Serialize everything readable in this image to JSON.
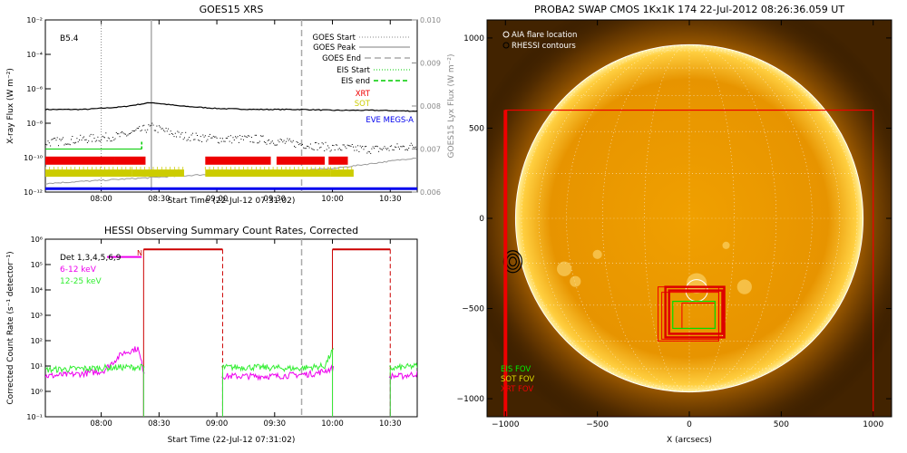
{
  "colors": {
    "goes_line": "#000000",
    "goes_peak": "#aaaaaa",
    "goes_end": "#aaaaaa",
    "eis": "#00cc00",
    "xrt": "#ee0000",
    "sot": "#cccc00",
    "eve": "#0000ee",
    "hessi_6_12": "#ee00ee",
    "hessi_12_25": "#33ee33",
    "hessi_flag": "#cc0000",
    "sun_glow": "#ffb000",
    "sun_core": "#f0a000"
  },
  "chart_data": [
    {
      "type": "line",
      "title": "GOES15 XRS",
      "xlabel": "Start Time (22-Jul-12 07:31:02)",
      "ylabel": "X-ray Flux (W m⁻²)",
      "ylabel_right": "GOES15 Lyx Flux (W m⁻²)",
      "class_label": "B5.4",
      "x_ticks": [
        "08:00",
        "08:30",
        "09:00",
        "09:30",
        "10:00",
        "10:30"
      ],
      "x_tick_minutes": [
        29,
        59,
        89,
        119,
        149,
        179
      ],
      "xlim_minutes": [
        0,
        193
      ],
      "y_log": true,
      "ylim_exp": [
        -12,
        -2
      ],
      "y_ticks": [
        "10⁻¹²",
        "10⁻¹⁰",
        "10⁻⁸",
        "10⁻⁶",
        "10⁻⁴",
        "10⁻²"
      ],
      "y_tick_exps": [
        -12,
        -10,
        -8,
        -6,
        -4,
        -2
      ],
      "y2_ticks": [
        "0.006",
        "0.007",
        "0.008",
        "0.009",
        "0.010"
      ],
      "y2lim": [
        0.006,
        0.01
      ],
      "legend": {
        "goes_start": "GOES Start",
        "goes_peak": "GOES Peak",
        "goes_end": "GOES End",
        "eis_start": "EIS Start",
        "eis_end": "EIS end",
        "xrt": "XRT",
        "sot": "SOT",
        "eve": "EVE MEGS-A"
      },
      "markers_minutes": {
        "goes_start": 29,
        "goes_peak": 55,
        "goes_end": 133
      },
      "series": [
        {
          "name": "Long",
          "exp_x": [
            0,
            20,
            40,
            55,
            70,
            90,
            110,
            133,
            150,
            170,
            193
          ],
          "exp_y": [
            -7.2,
            -7.2,
            -7.05,
            -6.8,
            -7.0,
            -7.15,
            -7.2,
            -7.2,
            -7.25,
            -7.25,
            -7.3
          ]
        },
        {
          "name": "Short",
          "exp_x": [
            0,
            20,
            40,
            55,
            70,
            90,
            110,
            133,
            150,
            170,
            193
          ],
          "exp_y": [
            -9.1,
            -8.9,
            -8.7,
            -8.2,
            -8.7,
            -8.9,
            -8.9,
            -9.2,
            -9.4,
            -9.5,
            -9.3
          ]
        },
        {
          "name": "Lyx",
          "x": [
            0,
            40,
            80,
            110,
            150,
            193
          ],
          "y": [
            0.0062,
            0.0063,
            0.0064,
            0.00645,
            0.00655,
            0.0068
          ]
        }
      ],
      "eis_intervals": [
        [
          0,
          50
        ]
      ],
      "xrt_intervals": [
        [
          0,
          36
        ],
        [
          36,
          52
        ],
        [
          83,
          117
        ],
        [
          120,
          145
        ],
        [
          147,
          157
        ]
      ],
      "sot_intervals": [
        [
          0,
          45
        ],
        [
          45,
          72
        ],
        [
          83,
          148
        ],
        [
          148,
          160
        ]
      ],
      "eve_intervals": [
        [
          0,
          193
        ]
      ]
    },
    {
      "type": "line",
      "title": "HESSI Observing Summary Count Rates, Corrected",
      "xlabel": "Start Time (22-Jul-12 07:31:02)",
      "ylabel": "Corrected Count Rate (s⁻¹ detector⁻¹)",
      "x_ticks": [
        "08:00",
        "08:30",
        "09:00",
        "09:30",
        "10:00",
        "10:30"
      ],
      "x_tick_minutes": [
        29,
        59,
        89,
        119,
        149,
        179
      ],
      "xlim_minutes": [
        0,
        193
      ],
      "y_log": true,
      "ylim_exp": [
        -1,
        6
      ],
      "y_ticks": [
        "10⁻¹",
        "10⁰",
        "10¹",
        "10²",
        "10³",
        "10⁴",
        "10⁵",
        "10⁶"
      ],
      "y_tick_exps": [
        -1,
        0,
        1,
        2,
        3,
        4,
        5,
        6
      ],
      "legend": {
        "det": "Det 1,3,4,5,6,9",
        "low": "6-12 keV",
        "high": "12-25 keV"
      },
      "flag_label": "N",
      "night_intervals": [
        [
          51,
          92
        ],
        [
          149,
          179
        ]
      ],
      "goes_end_minute": 133,
      "series": [
        {
          "name": "6-12 keV",
          "exp_x": [
            0,
            20,
            30,
            40,
            48,
            51,
            92,
            100,
            120,
            140,
            149,
            179,
            185,
            193
          ],
          "exp_y": [
            0.6,
            0.7,
            0.8,
            1.5,
            1.7,
            0.8,
            0.6,
            0.6,
            0.6,
            0.7,
            0.9,
            0.6,
            0.6,
            0.7
          ]
        },
        {
          "name": "12-25 keV",
          "exp_x": [
            0,
            20,
            40,
            51,
            92,
            110,
            130,
            145,
            149,
            179,
            185,
            193
          ],
          "exp_y": [
            0.85,
            0.9,
            0.95,
            0.95,
            0.95,
            0.95,
            0.9,
            1.0,
            1.6,
            0.9,
            0.95,
            1.0
          ]
        }
      ]
    },
    {
      "type": "heatmap",
      "title": "PROBA2 SWAP CMOS 1Kx1K 174 22-Jul-2012 08:26:36.059 UT",
      "xlabel": "X (arcsecs)",
      "ylabel": "",
      "xlim": [
        -1100,
        1100
      ],
      "ylim": [
        -1100,
        1100
      ],
      "x_ticks": [
        "−1000",
        "−500",
        "0",
        "500",
        "1000"
      ],
      "x_tick_vals": [
        -1000,
        -500,
        0,
        500,
        1000
      ],
      "y_ticks": [
        "−1000",
        "−500",
        "0",
        "500",
        "1000"
      ],
      "y_tick_vals": [
        -1000,
        -500,
        0,
        500,
        1000
      ],
      "legend": {
        "aia": "AIA flare location",
        "rhessi": "RHESSI contours"
      },
      "fov_legend": {
        "eis": "EIS FOV",
        "sot": "SOT FOV",
        "xrt": "XRT FOV"
      },
      "solar_radius": 945,
      "aia_flare": [
        40,
        -400
      ],
      "rhessi_contour_center": [
        -960,
        -240
      ],
      "xrt_fov": {
        "x": [
          -1000,
          1000
        ],
        "y": [
          -1100,
          600
        ]
      },
      "sot_fov_boxes": [
        [
          -130,
          -660,
          320,
          280
        ],
        [
          -110,
          -640,
          290,
          240
        ]
      ],
      "eis_fov": [
        -90,
        -610,
        230,
        150
      ],
      "xrt_small_boxes": [
        [
          -170,
          -680,
          330,
          300
        ],
        [
          -150,
          -670,
          310,
          260
        ],
        [
          -40,
          -610,
          180,
          140
        ]
      ]
    }
  ]
}
